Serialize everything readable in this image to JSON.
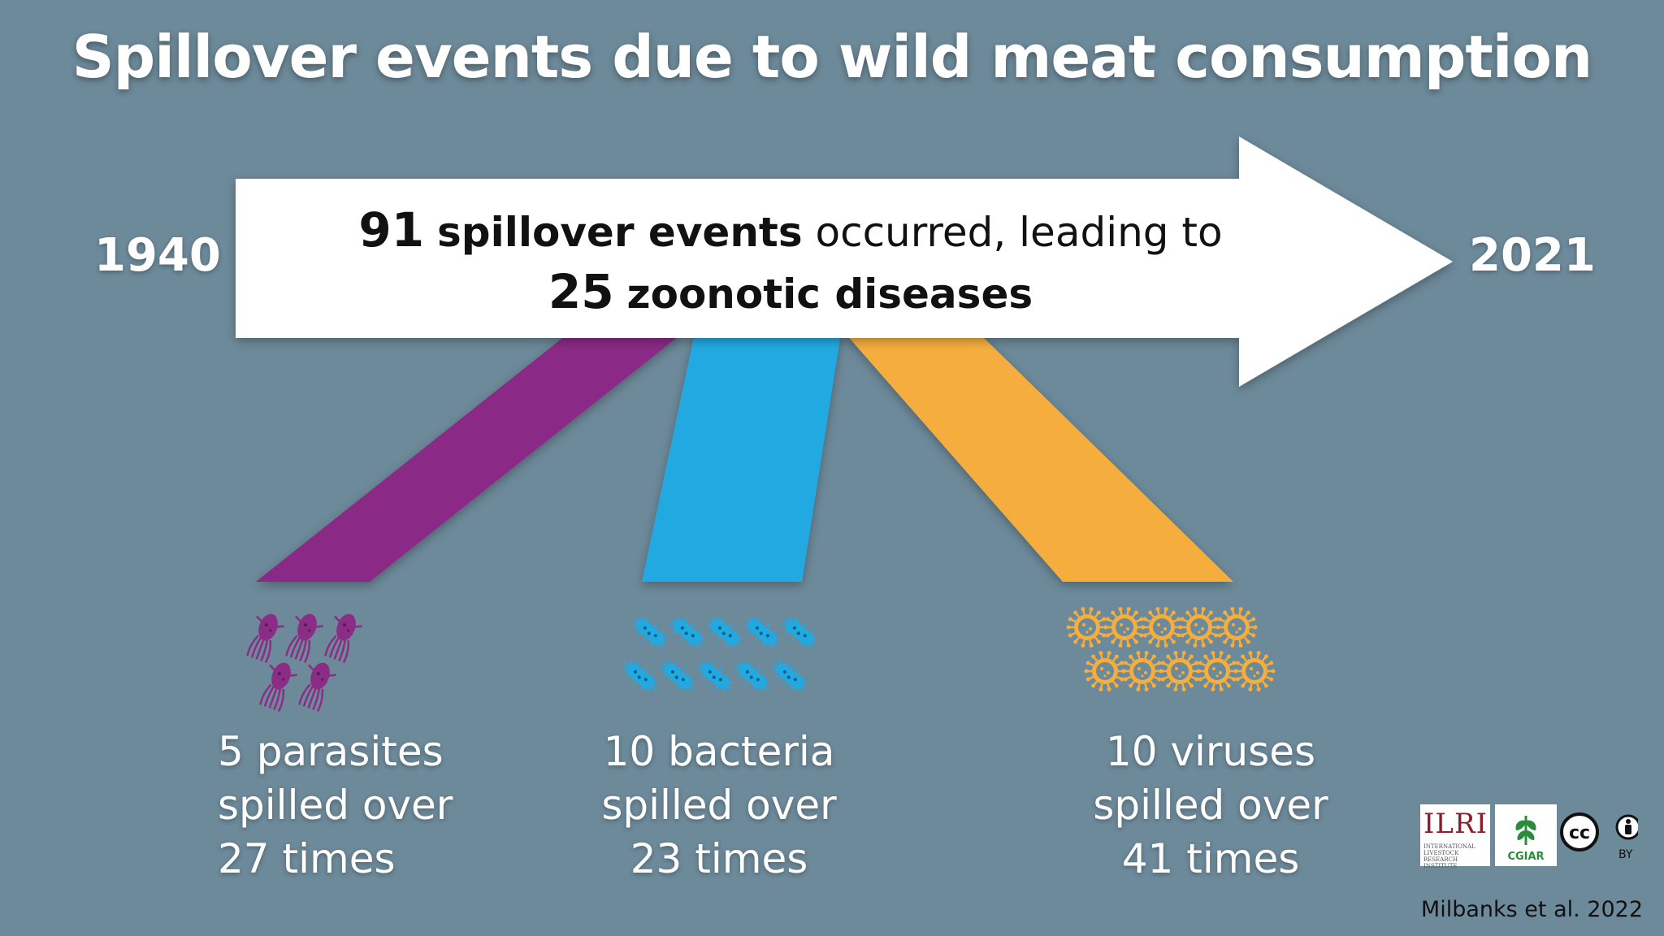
{
  "title": "Spillover events due to wild meat consumption",
  "timeline": {
    "start_year": "1940",
    "end_year": "2021"
  },
  "arrow": {
    "line1_number": "91",
    "line1_bold": "spillover events",
    "line1_rest": "occurred, leading to",
    "line2_number": "25",
    "line2_bold": "zoonotic diseases"
  },
  "categories": [
    {
      "name": "parasites",
      "color": "#8b2c86",
      "icon": "parasite-icon",
      "icon_count": 5,
      "lines": [
        "5 parasites",
        "spilled over",
        "27 times"
      ]
    },
    {
      "name": "bacteria",
      "color": "#22a9e1",
      "icon": "bacterium-icon",
      "icon_count": 10,
      "lines": [
        "10 bacteria",
        "spilled over",
        "23 times"
      ]
    },
    {
      "name": "viruses",
      "color": "#f5ae3d",
      "icon": "virus-icon",
      "icon_count": 10,
      "lines": [
        "10 viruses",
        "spilled over",
        "41 times"
      ]
    }
  ],
  "logos": {
    "ilri_text": "ILRI",
    "ilri_subtext": "INTERNATIONAL LIVESTOCK RESEARCH INSTITUTE",
    "cgiar_text": "CGIAR",
    "license_cc": "cc",
    "license_by": "BY"
  },
  "citation": "Milbanks et al. 2022"
}
